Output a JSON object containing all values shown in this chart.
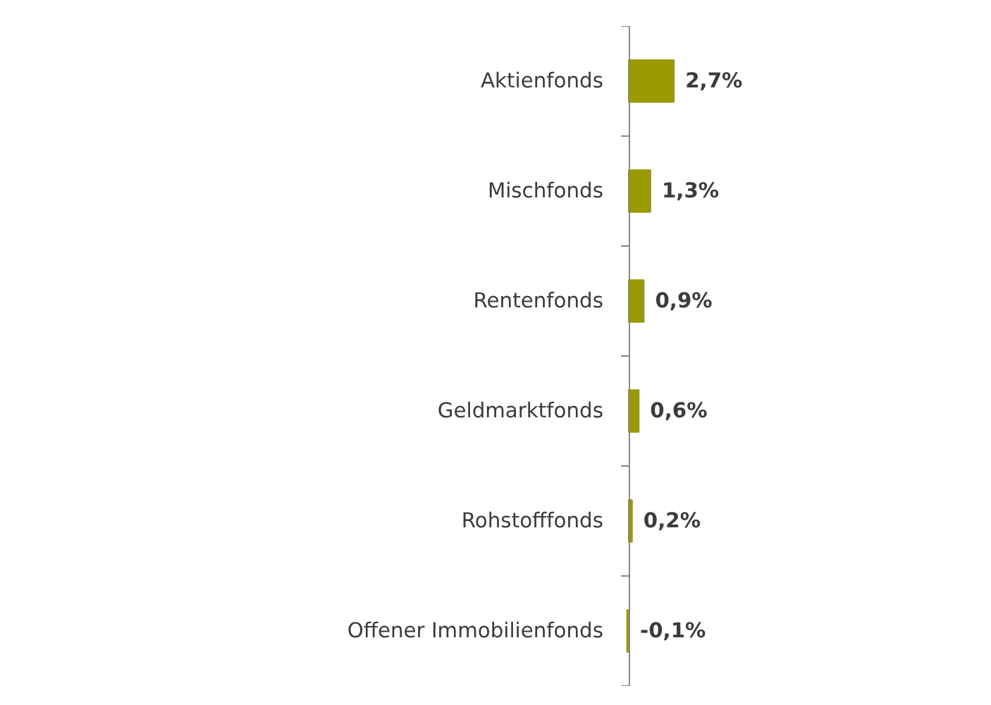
{
  "chart_data": {
    "type": "bar",
    "orientation": "horizontal",
    "categories": [
      "Aktienfonds",
      "Mischfonds",
      "Rentenfonds",
      "Geldmarktfonds",
      "Rohstofffonds",
      "Offener Immobilienfonds"
    ],
    "values": [
      2.7,
      1.3,
      0.9,
      0.6,
      0.2,
      -0.1
    ],
    "value_labels": [
      "2,7%",
      "1,3%",
      "0,9%",
      "0,6%",
      "0,2%",
      "-0,1%"
    ],
    "color": "#999900",
    "tick_labels": "y"
  }
}
